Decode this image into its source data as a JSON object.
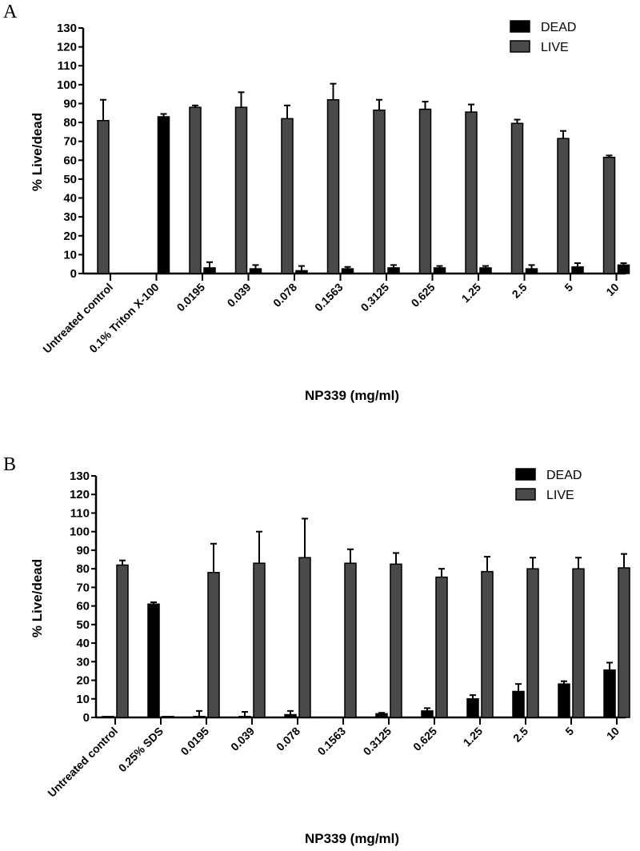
{
  "chart_data": [
    {
      "panel": "A",
      "type": "bar",
      "xlabel": "NP339 (mg/ml)",
      "ylabel": "% Live/dead",
      "ylim": [
        0,
        130
      ],
      "yticks": [
        0,
        10,
        20,
        30,
        40,
        50,
        60,
        70,
        80,
        90,
        100,
        110,
        120,
        130
      ],
      "categories": [
        "Untreated control",
        "0.1% Triton X-100",
        "0.0195",
        "0.039",
        "0.078",
        "0.1563",
        "0.3125",
        "0.625",
        "1.25",
        "2.5",
        "5",
        "10"
      ],
      "bar_order": [
        "LIVE",
        "DEAD"
      ],
      "legend": [
        "DEAD",
        "LIVE"
      ],
      "legend_position": "top-right",
      "series": [
        {
          "name": "DEAD",
          "color": "#000000",
          "values": [
            0,
            83,
            3,
            2.5,
            1.5,
            2.5,
            3,
            3,
            3,
            2.5,
            3.5,
            4.5
          ],
          "error": [
            0,
            1.5,
            3,
            2,
            2.5,
            1,
            1.5,
            1,
            1,
            2,
            2,
            1
          ]
        },
        {
          "name": "LIVE",
          "color": "#4a4a4a",
          "values": [
            81,
            0,
            88,
            88,
            82,
            92,
            86.5,
            87,
            85.5,
            79.5,
            71.5,
            61.5
          ],
          "error": [
            11,
            0,
            1,
            8,
            7,
            8.5,
            5.5,
            4,
            4,
            2,
            4,
            1
          ]
        }
      ]
    },
    {
      "panel": "B",
      "type": "bar",
      "xlabel": "NP339 (mg/ml)",
      "ylabel": "% Live/dead",
      "ylim": [
        0,
        130
      ],
      "yticks": [
        0,
        10,
        20,
        30,
        40,
        50,
        60,
        70,
        80,
        90,
        100,
        110,
        120,
        130
      ],
      "categories": [
        "Untreated control",
        "0.25% SDS",
        "0.0195",
        "0.039",
        "0.078",
        "0.1563",
        "0.3125",
        "0.625",
        "1.25",
        "2.5",
        "5",
        "10"
      ],
      "bar_order": [
        "DEAD",
        "LIVE"
      ],
      "legend": [
        "DEAD",
        "LIVE"
      ],
      "legend_position": "top-right",
      "series": [
        {
          "name": "DEAD",
          "color": "#000000",
          "values": [
            0.5,
            61,
            0.5,
            0.5,
            1.5,
            0,
            2,
            3.5,
            10,
            14,
            18,
            25.5
          ],
          "error": [
            0,
            1,
            3,
            2.5,
            2,
            0,
            0.5,
            1.5,
            2,
            4,
            1.5,
            4
          ]
        },
        {
          "name": "LIVE",
          "color": "#4a4a4a",
          "values": [
            82,
            0.5,
            78,
            83,
            86,
            83,
            82.5,
            75.5,
            78.5,
            80,
            80,
            80.5
          ],
          "error": [
            2.5,
            0,
            15.5,
            17,
            21,
            7.5,
            6,
            4.5,
            8,
            6,
            6,
            7.5
          ]
        }
      ]
    }
  ]
}
